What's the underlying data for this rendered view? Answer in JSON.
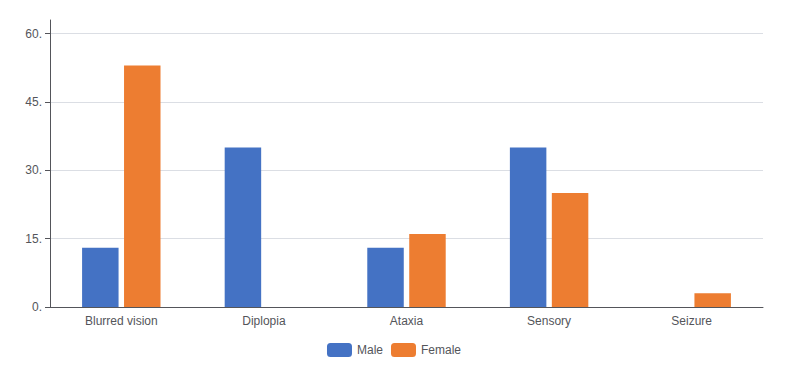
{
  "chart_data": {
    "type": "bar",
    "categories": [
      "Blurred vision",
      "Diplopia",
      "Ataxia",
      "Sensory",
      "Seizure"
    ],
    "series": [
      {
        "name": "Male",
        "color": "#4472C4",
        "values": [
          13,
          35,
          13,
          35,
          0
        ]
      },
      {
        "name": "Female",
        "color": "#ED7D31",
        "values": [
          53,
          0,
          16,
          25,
          3
        ]
      }
    ],
    "ylim": [
      0,
      63
    ],
    "yticks": [
      {
        "value": 0,
        "label": "0."
      },
      {
        "value": 15,
        "label": "15."
      },
      {
        "value": 30,
        "label": "30."
      },
      {
        "value": 45,
        "label": "45."
      },
      {
        "value": 60,
        "label": "60."
      }
    ],
    "grid": true,
    "legend": "bottom"
  }
}
